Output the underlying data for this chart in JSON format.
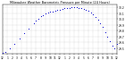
{
  "title": "Milwaukee Weather Barometric Pressure per Minute (24 Hours)",
  "bg_color": "#ffffff",
  "dot_color": "#0000cc",
  "grid_color": "#999999",
  "ylim": [
    29.4,
    30.25
  ],
  "xlim": [
    0,
    1440
  ],
  "ytick_values": [
    29.5,
    29.6,
    29.7,
    29.8,
    29.9,
    30.0,
    30.1,
    30.2
  ],
  "xtick_positions": [
    0,
    60,
    120,
    180,
    240,
    300,
    360,
    420,
    480,
    540,
    600,
    660,
    720,
    780,
    840,
    900,
    960,
    1020,
    1080,
    1140,
    1200,
    1260,
    1320,
    1380,
    1440
  ],
  "xtick_labels": [
    "12",
    "1",
    "2",
    "3",
    "4",
    "5",
    "6",
    "7",
    "8",
    "9",
    "10",
    "11",
    "12",
    "1",
    "2",
    "3",
    "4",
    "5",
    "6",
    "7",
    "8",
    "9",
    "10",
    "11",
    "12"
  ],
  "data_x": [
    0,
    30,
    90,
    150,
    210,
    270,
    330,
    390,
    420,
    450,
    480,
    510,
    540,
    570,
    600,
    630,
    660,
    690,
    720,
    750,
    780,
    810,
    840,
    870,
    900,
    930,
    960,
    990,
    1020,
    1050,
    1080,
    1110,
    1140,
    1170,
    1200,
    1230,
    1260,
    1290,
    1320,
    1350,
    1380,
    1410,
    1440
  ],
  "data_y": [
    29.42,
    29.44,
    29.5,
    29.58,
    29.67,
    29.76,
    29.84,
    29.92,
    29.97,
    30.01,
    30.05,
    30.07,
    30.09,
    30.11,
    30.12,
    30.13,
    30.14,
    30.15,
    30.16,
    30.17,
    30.18,
    30.19,
    30.19,
    30.2,
    30.2,
    30.2,
    30.19,
    30.18,
    30.17,
    30.16,
    30.14,
    30.11,
    30.08,
    30.04,
    29.99,
    29.93,
    29.86,
    29.78,
    29.7,
    29.62,
    29.55,
    29.5,
    29.58
  ]
}
